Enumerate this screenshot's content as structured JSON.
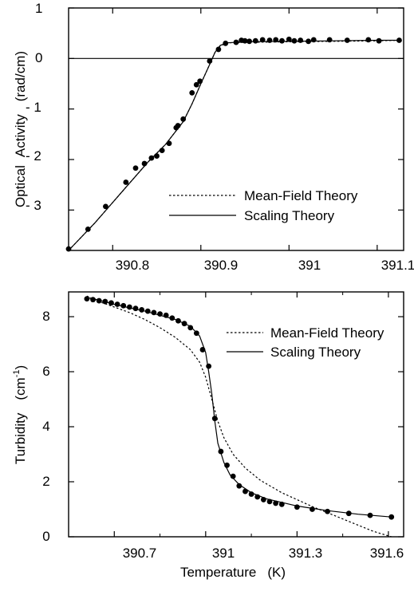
{
  "chart_data": [
    {
      "type": "scatter",
      "title": "",
      "xlabel": "",
      "ylabel": "Optical Activity (rad/cm)",
      "ylabel_parts": [
        "Optical",
        "Activity",
        "(rad/cm)"
      ],
      "xlim": [
        390.75,
        391.13
      ],
      "ylim": [
        -3.8,
        1.0
      ],
      "x_ticks": [
        390.8,
        390.9,
        391.0,
        391.1
      ],
      "x_tick_labels": [
        "390.8",
        "390.9",
        "391",
        "391.1"
      ],
      "y_ticks": [
        1,
        0,
        -1,
        -2,
        -3
      ],
      "y_tick_labels": [
        "1",
        "0",
        "- 1",
        "- 2",
        "- 3"
      ],
      "zero_line": true,
      "grid": false,
      "legend_position": "lower-right",
      "series": [
        {
          "name": "",
          "style": "points",
          "x": [
            390.75,
            390.772,
            390.792,
            390.815,
            390.826,
            390.836,
            390.844,
            390.85,
            390.856,
            390.864,
            390.872,
            390.874,
            390.88,
            390.89,
            390.895,
            390.899,
            390.91,
            390.92,
            390.928,
            390.94,
            390.946,
            390.95,
            390.955,
            390.962,
            390.97,
            390.978,
            390.985,
            390.992,
            391.0,
            391.006,
            391.013,
            391.022,
            391.028,
            391.046,
            391.066,
            391.09,
            391.102,
            391.125
          ],
          "y": [
            -3.77,
            -3.38,
            -2.93,
            -2.45,
            -2.17,
            -2.08,
            -1.97,
            -1.93,
            -1.82,
            -1.68,
            -1.37,
            -1.33,
            -1.2,
            -0.68,
            -0.52,
            -0.45,
            -0.05,
            0.18,
            0.3,
            0.32,
            0.36,
            0.35,
            0.34,
            0.35,
            0.37,
            0.36,
            0.37,
            0.35,
            0.38,
            0.35,
            0.36,
            0.34,
            0.37,
            0.37,
            0.36,
            0.37,
            0.35,
            0.36
          ]
        },
        {
          "name": "Mean-Field Theory",
          "style": "dashed",
          "x": [
            390.75,
            390.78,
            390.81,
            390.84,
            390.86,
            390.88,
            390.89,
            390.9,
            390.91,
            390.916,
            390.922,
            390.93,
            390.95,
            391.0,
            391.05,
            391.1,
            391.125
          ],
          "y": [
            -3.8,
            -3.25,
            -2.65,
            -2.05,
            -1.7,
            -1.25,
            -0.9,
            -0.5,
            -0.12,
            0.12,
            0.25,
            0.31,
            0.32,
            0.33,
            0.34,
            0.35,
            0.36
          ]
        },
        {
          "name": "Scaling Theory",
          "style": "solid",
          "x": [
            390.75,
            390.78,
            390.81,
            390.84,
            390.86,
            390.88,
            390.89,
            390.9,
            390.91,
            390.916,
            390.922,
            390.93,
            390.95,
            391.0,
            391.05,
            391.1,
            391.125
          ],
          "y": [
            -3.8,
            -3.25,
            -2.65,
            -2.05,
            -1.7,
            -1.25,
            -0.9,
            -0.5,
            -0.12,
            0.12,
            0.26,
            0.31,
            0.33,
            0.34,
            0.35,
            0.36,
            0.36
          ]
        }
      ]
    },
    {
      "type": "scatter",
      "title": "",
      "xlabel": "Temperature (K)",
      "xlabel_parts": [
        "Temperature",
        "(K)"
      ],
      "ylabel": "Turbidity (cm-1)",
      "ylabel_parts": [
        "Turbidity",
        "(cm",
        "-1",
        ")"
      ],
      "xlim": [
        390.55,
        391.65
      ],
      "ylim": [
        0,
        8.9
      ],
      "x_ticks": [
        390.7,
        391.0,
        391.3,
        391.6
      ],
      "x_tick_labels": [
        "390.7",
        "391",
        "391.3",
        "391.6"
      ],
      "minor_x_ticks": [
        390.85,
        391.15,
        391.45
      ],
      "y_ticks": [
        0,
        2,
        4,
        6,
        8
      ],
      "y_tick_labels": [
        "0",
        "2",
        "4",
        "6",
        "8"
      ],
      "grid": false,
      "legend_position": "upper-right",
      "series": [
        {
          "name": "",
          "style": "points",
          "x": [
            390.61,
            390.63,
            390.65,
            390.67,
            390.69,
            390.71,
            390.73,
            390.75,
            390.77,
            390.79,
            390.81,
            390.83,
            390.85,
            390.87,
            390.89,
            390.91,
            390.93,
            390.95,
            390.97,
            390.99,
            391.01,
            391.03,
            391.05,
            391.07,
            391.09,
            391.11,
            391.13,
            391.15,
            391.17,
            391.19,
            391.21,
            391.23,
            391.25,
            391.3,
            391.35,
            391.4,
            391.47,
            391.54,
            391.61
          ],
          "y": [
            8.65,
            8.62,
            8.58,
            8.55,
            8.5,
            8.45,
            8.4,
            8.35,
            8.3,
            8.25,
            8.2,
            8.15,
            8.1,
            8.05,
            7.95,
            7.85,
            7.75,
            7.6,
            7.4,
            6.8,
            6.2,
            4.3,
            3.1,
            2.6,
            2.2,
            1.85,
            1.65,
            1.55,
            1.45,
            1.35,
            1.28,
            1.22,
            1.18,
            1.08,
            1.0,
            0.92,
            0.85,
            0.78,
            0.72
          ]
        },
        {
          "name": "Mean-Field Theory",
          "style": "dashed",
          "x": [
            390.61,
            390.65,
            390.7,
            390.75,
            390.8,
            390.85,
            390.9,
            390.95,
            390.98,
            391.0,
            391.02,
            391.04,
            391.06,
            391.09,
            391.13,
            391.18,
            391.25,
            391.35,
            391.45,
            391.55,
            391.61
          ],
          "y": [
            8.75,
            8.55,
            8.35,
            8.15,
            7.9,
            7.6,
            7.25,
            6.8,
            6.35,
            5.8,
            5.0,
            4.2,
            3.6,
            3.0,
            2.5,
            2.05,
            1.6,
            1.1,
            0.65,
            0.2,
            0.0
          ]
        },
        {
          "name": "Scaling Theory",
          "style": "solid",
          "x": [
            390.61,
            390.65,
            390.7,
            390.75,
            390.8,
            390.85,
            390.9,
            390.95,
            390.98,
            391.0,
            391.01,
            391.02,
            391.03,
            391.04,
            391.06,
            391.08,
            391.11,
            391.15,
            391.2,
            391.3,
            391.4,
            391.5,
            391.61
          ],
          "y": [
            8.7,
            8.6,
            8.45,
            8.32,
            8.2,
            8.05,
            7.9,
            7.65,
            7.3,
            6.7,
            6.0,
            5.2,
            4.2,
            3.4,
            2.7,
            2.25,
            1.9,
            1.6,
            1.38,
            1.12,
            0.95,
            0.82,
            0.72
          ]
        }
      ]
    }
  ]
}
